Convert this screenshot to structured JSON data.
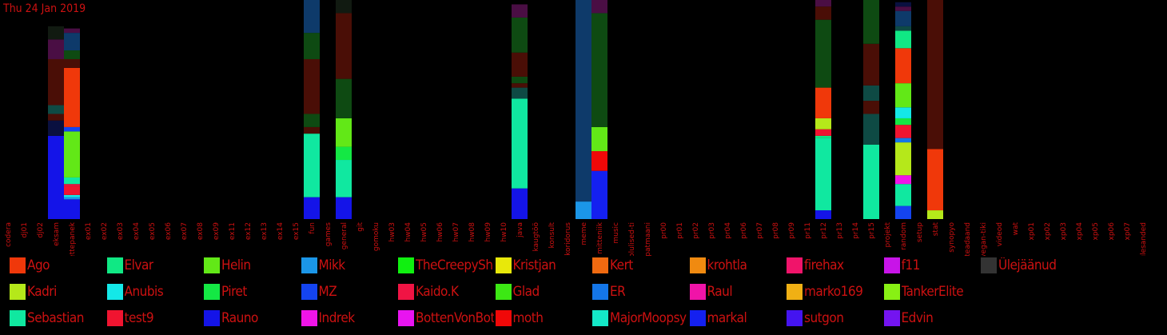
{
  "date_label": "Thu 24 Jan 2019",
  "colors": {
    "Ago": "#f0380a",
    "Elvar": "#10e884",
    "Helin": "#62e817",
    "Mikk": "#1b96e8",
    "TheCreepySh": "#10f010",
    "Kristjan": "#e8e80a",
    "Kert": "#f06a10",
    "krohtla": "#f08a10",
    "firehax": "#f0146a",
    "f11": "#c814e8",
    "Ülejäänud": "#333333",
    "Kadri": "#b5e81a",
    "Anubis": "#14e8e8",
    "Piret": "#14e844",
    "MZ": "#1444f0",
    "Kaido.K": "#f01444",
    "Glad": "#3ce814",
    "ER": "#1476e8",
    "Raul": "#f014a8",
    "marko169": "#f0b014",
    "TankerElite": "#88f014",
    "Sebastian": "#10e8a0",
    "test9": "#f01430",
    "Rauno": "#1414e8",
    "Indrek": "#f014e8",
    "BottenVonBot": "#e814f0",
    "moth": "#f00808",
    "MajorMoopsy": "#14e8c8",
    "markal": "#1420f0",
    "sutgon": "#4414f0",
    "Edvin": "#7414f0",
    "dark1": "#4a0e06",
    "dark2": "#0e4a12",
    "dark3": "#0e3a6a",
    "dark4": "#0e4a44",
    "dark5": "#4a0e44",
    "dark6": "#0a1040",
    "dark7": "#111a11"
  },
  "chart_data": {
    "type": "bar",
    "stacked": true,
    "ylim": [
      0,
      100
    ],
    "categories": [
      "codera",
      "dj01",
      "dj02",
      "eksam",
      "ettepanek",
      "ex01",
      "ex02",
      "ex03",
      "ex04",
      "ex05",
      "ex06",
      "ex07",
      "ex08",
      "ex09",
      "ex11",
      "ex12",
      "ex13",
      "ex14",
      "ex15",
      "fun",
      "games",
      "general",
      "git",
      "gomoku",
      "hw03",
      "hw04",
      "hw05",
      "hw06",
      "hw07",
      "hw08",
      "hw09",
      "hw10",
      "java",
      "kaugtöö",
      "konsult",
      "koridorus",
      "meme",
      "mitteniik",
      "music",
      "olulised-ti",
      "patmaani",
      "pr00",
      "pr01",
      "pr02",
      "pr03",
      "pr04",
      "pr06",
      "pr07",
      "pr08",
      "pr09",
      "pr11",
      "pr12",
      "pr13",
      "pr14",
      "pr15",
      "projekt",
      "random",
      "setup",
      "stat",
      "synopyo",
      "teadaand",
      "vegan-tiki",
      "videod",
      "wat",
      "xp01",
      "xp02",
      "xp03",
      "xp04",
      "xp05",
      "xp06",
      "xp07",
      "ülesanded"
    ],
    "stacks": {
      "eksam": [
        {
          "s": "Rauno",
          "v": 38
        },
        {
          "s": "dark6",
          "v": 7
        },
        {
          "s": "dark1",
          "v": 3
        },
        {
          "s": "dark4",
          "v": 4
        },
        {
          "s": "dark1",
          "v": 21
        },
        {
          "s": "dark5",
          "v": 9
        },
        {
          "s": "dark7",
          "v": 6
        }
      ],
      "ettepanek": [
        {
          "s": "Rauno",
          "v": 9
        },
        {
          "s": "Mikk",
          "v": 1
        },
        {
          "s": "Anubis",
          "v": 1
        },
        {
          "s": "test9",
          "v": 4
        },
        {
          "s": "Kaido.K",
          "v": 1
        },
        {
          "s": "Sebastian",
          "v": 3
        },
        {
          "s": "Helin",
          "v": 21
        },
        {
          "s": "MZ",
          "v": 2
        },
        {
          "s": "Ago",
          "v": 27
        },
        {
          "s": "dark1",
          "v": 4
        },
        {
          "s": "dark2",
          "v": 4
        },
        {
          "s": "dark3",
          "v": 8
        },
        {
          "s": "dark5",
          "v": 2
        }
      ],
      "fun": [
        {
          "s": "Rauno",
          "v": 10
        },
        {
          "s": "Sebastian",
          "v": 29
        },
        {
          "s": "dark1",
          "v": 3
        },
        {
          "s": "dark2",
          "v": 6
        },
        {
          "s": "dark1",
          "v": 25
        },
        {
          "s": "dark2",
          "v": 12
        },
        {
          "s": "dark3",
          "v": 15
        }
      ],
      "general": [
        {
          "s": "Rauno",
          "v": 10
        },
        {
          "s": "Sebastian",
          "v": 17
        },
        {
          "s": "Piret",
          "v": 6
        },
        {
          "s": "Helin",
          "v": 13
        },
        {
          "s": "dark2",
          "v": 18
        },
        {
          "s": "dark1",
          "v": 30
        },
        {
          "s": "dark7",
          "v": 6
        }
      ],
      "java": [
        {
          "s": "Rauno",
          "v": 14
        },
        {
          "s": "Sebastian",
          "v": 41
        },
        {
          "s": "dark4",
          "v": 5
        },
        {
          "s": "dark1",
          "v": 2
        },
        {
          "s": "dark2",
          "v": 3
        },
        {
          "s": "dark1",
          "v": 11
        },
        {
          "s": "dark2",
          "v": 16
        },
        {
          "s": "dark5",
          "v": 6
        }
      ],
      "meme": [
        {
          "s": "Mikk",
          "v": 8
        },
        {
          "s": "dark3",
          "v": 92
        }
      ],
      "mitteniik": [
        {
          "s": "markal",
          "v": 22
        },
        {
          "s": "moth",
          "v": 9
        },
        {
          "s": "Helin",
          "v": 11
        },
        {
          "s": "dark2",
          "v": 52
        },
        {
          "s": "dark5",
          "v": 6
        }
      ],
      "pr12": [
        {
          "s": "Rauno",
          "v": 4
        },
        {
          "s": "Sebastian",
          "v": 33
        },
        {
          "s": "Elvar",
          "v": 1
        },
        {
          "s": "test9",
          "v": 3
        },
        {
          "s": "Kadri",
          "v": 5
        },
        {
          "s": "Ago",
          "v": 14
        },
        {
          "s": "dark2",
          "v": 31
        },
        {
          "s": "dark1",
          "v": 6
        },
        {
          "s": "dark5",
          "v": 3
        }
      ],
      "pr15": [
        {
          "s": "Sebastian",
          "v": 34
        },
        {
          "s": "dark4",
          "v": 14
        },
        {
          "s": "dark1",
          "v": 6
        },
        {
          "s": "dark4",
          "v": 7
        },
        {
          "s": "dark1",
          "v": 19
        },
        {
          "s": "dark2",
          "v": 20
        }
      ],
      "random": [
        {
          "s": "MZ",
          "v": 6
        },
        {
          "s": "Sebastian",
          "v": 10
        },
        {
          "s": "Indrek",
          "v": 4
        },
        {
          "s": "Kadri",
          "v": 15
        },
        {
          "s": "ER",
          "v": 2
        },
        {
          "s": "test9",
          "v": 6
        },
        {
          "s": "Piret",
          "v": 3
        },
        {
          "s": "Anubis",
          "v": 5
        },
        {
          "s": "Helin",
          "v": 11
        },
        {
          "s": "Ago",
          "v": 16
        },
        {
          "s": "Elvar",
          "v": 8
        },
        {
          "s": "dark4",
          "v": 2
        },
        {
          "s": "dark3",
          "v": 7
        },
        {
          "s": "dark5",
          "v": 2
        },
        {
          "s": "dark6",
          "v": 2
        }
      ],
      "stat": [
        {
          "s": "Kadri",
          "v": 4
        },
        {
          "s": "Ago",
          "v": 28
        },
        {
          "s": "dark1",
          "v": 68
        }
      ]
    },
    "legend": {
      "columns": [
        [
          "Ago",
          "Kadri",
          "Sebastian"
        ],
        [
          "Elvar",
          "Anubis",
          "test9"
        ],
        [
          "Helin",
          "Piret",
          "Rauno"
        ],
        [
          "Mikk",
          "MZ",
          "Indrek"
        ],
        [
          "TheCreepySh",
          "Kaido.K",
          "BottenVonBot"
        ],
        [
          "Kristjan",
          "Glad",
          "moth"
        ],
        [
          "Kert",
          "ER",
          "MajorMoopsy"
        ],
        [
          "krohtla",
          "Raul",
          "markal"
        ],
        [
          "firehax",
          "marko169",
          "sutgon"
        ],
        [
          "f11",
          "TankerElite",
          "Edvin"
        ],
        [
          "Ülejäänud"
        ]
      ]
    }
  }
}
